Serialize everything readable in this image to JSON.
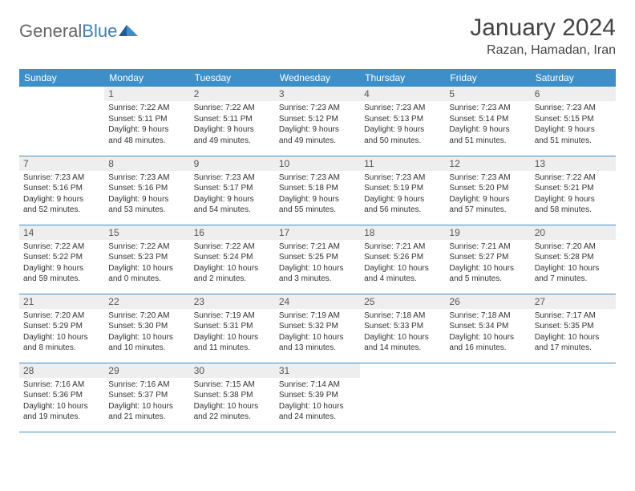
{
  "brand": {
    "general": "General",
    "blue": "Blue"
  },
  "title": "January 2024",
  "location": "Razan, Hamadan, Iran",
  "colors": {
    "header_bg": "#3d8fc9",
    "header_text": "#ffffff",
    "daynum_bg": "#eeeeee",
    "text": "#333333",
    "rule": "#3d8fc9"
  },
  "weekdays": [
    "Sunday",
    "Monday",
    "Tuesday",
    "Wednesday",
    "Thursday",
    "Friday",
    "Saturday"
  ],
  "weeks": [
    [
      null,
      {
        "n": "1",
        "sunrise": "Sunrise: 7:22 AM",
        "sunset": "Sunset: 5:11 PM",
        "d1": "Daylight: 9 hours",
        "d2": "and 48 minutes."
      },
      {
        "n": "2",
        "sunrise": "Sunrise: 7:22 AM",
        "sunset": "Sunset: 5:11 PM",
        "d1": "Daylight: 9 hours",
        "d2": "and 49 minutes."
      },
      {
        "n": "3",
        "sunrise": "Sunrise: 7:23 AM",
        "sunset": "Sunset: 5:12 PM",
        "d1": "Daylight: 9 hours",
        "d2": "and 49 minutes."
      },
      {
        "n": "4",
        "sunrise": "Sunrise: 7:23 AM",
        "sunset": "Sunset: 5:13 PM",
        "d1": "Daylight: 9 hours",
        "d2": "and 50 minutes."
      },
      {
        "n": "5",
        "sunrise": "Sunrise: 7:23 AM",
        "sunset": "Sunset: 5:14 PM",
        "d1": "Daylight: 9 hours",
        "d2": "and 51 minutes."
      },
      {
        "n": "6",
        "sunrise": "Sunrise: 7:23 AM",
        "sunset": "Sunset: 5:15 PM",
        "d1": "Daylight: 9 hours",
        "d2": "and 51 minutes."
      }
    ],
    [
      {
        "n": "7",
        "sunrise": "Sunrise: 7:23 AM",
        "sunset": "Sunset: 5:16 PM",
        "d1": "Daylight: 9 hours",
        "d2": "and 52 minutes."
      },
      {
        "n": "8",
        "sunrise": "Sunrise: 7:23 AM",
        "sunset": "Sunset: 5:16 PM",
        "d1": "Daylight: 9 hours",
        "d2": "and 53 minutes."
      },
      {
        "n": "9",
        "sunrise": "Sunrise: 7:23 AM",
        "sunset": "Sunset: 5:17 PM",
        "d1": "Daylight: 9 hours",
        "d2": "and 54 minutes."
      },
      {
        "n": "10",
        "sunrise": "Sunrise: 7:23 AM",
        "sunset": "Sunset: 5:18 PM",
        "d1": "Daylight: 9 hours",
        "d2": "and 55 minutes."
      },
      {
        "n": "11",
        "sunrise": "Sunrise: 7:23 AM",
        "sunset": "Sunset: 5:19 PM",
        "d1": "Daylight: 9 hours",
        "d2": "and 56 minutes."
      },
      {
        "n": "12",
        "sunrise": "Sunrise: 7:23 AM",
        "sunset": "Sunset: 5:20 PM",
        "d1": "Daylight: 9 hours",
        "d2": "and 57 minutes."
      },
      {
        "n": "13",
        "sunrise": "Sunrise: 7:22 AM",
        "sunset": "Sunset: 5:21 PM",
        "d1": "Daylight: 9 hours",
        "d2": "and 58 minutes."
      }
    ],
    [
      {
        "n": "14",
        "sunrise": "Sunrise: 7:22 AM",
        "sunset": "Sunset: 5:22 PM",
        "d1": "Daylight: 9 hours",
        "d2": "and 59 minutes."
      },
      {
        "n": "15",
        "sunrise": "Sunrise: 7:22 AM",
        "sunset": "Sunset: 5:23 PM",
        "d1": "Daylight: 10 hours",
        "d2": "and 0 minutes."
      },
      {
        "n": "16",
        "sunrise": "Sunrise: 7:22 AM",
        "sunset": "Sunset: 5:24 PM",
        "d1": "Daylight: 10 hours",
        "d2": "and 2 minutes."
      },
      {
        "n": "17",
        "sunrise": "Sunrise: 7:21 AM",
        "sunset": "Sunset: 5:25 PM",
        "d1": "Daylight: 10 hours",
        "d2": "and 3 minutes."
      },
      {
        "n": "18",
        "sunrise": "Sunrise: 7:21 AM",
        "sunset": "Sunset: 5:26 PM",
        "d1": "Daylight: 10 hours",
        "d2": "and 4 minutes."
      },
      {
        "n": "19",
        "sunrise": "Sunrise: 7:21 AM",
        "sunset": "Sunset: 5:27 PM",
        "d1": "Daylight: 10 hours",
        "d2": "and 5 minutes."
      },
      {
        "n": "20",
        "sunrise": "Sunrise: 7:20 AM",
        "sunset": "Sunset: 5:28 PM",
        "d1": "Daylight: 10 hours",
        "d2": "and 7 minutes."
      }
    ],
    [
      {
        "n": "21",
        "sunrise": "Sunrise: 7:20 AM",
        "sunset": "Sunset: 5:29 PM",
        "d1": "Daylight: 10 hours",
        "d2": "and 8 minutes."
      },
      {
        "n": "22",
        "sunrise": "Sunrise: 7:20 AM",
        "sunset": "Sunset: 5:30 PM",
        "d1": "Daylight: 10 hours",
        "d2": "and 10 minutes."
      },
      {
        "n": "23",
        "sunrise": "Sunrise: 7:19 AM",
        "sunset": "Sunset: 5:31 PM",
        "d1": "Daylight: 10 hours",
        "d2": "and 11 minutes."
      },
      {
        "n": "24",
        "sunrise": "Sunrise: 7:19 AM",
        "sunset": "Sunset: 5:32 PM",
        "d1": "Daylight: 10 hours",
        "d2": "and 13 minutes."
      },
      {
        "n": "25",
        "sunrise": "Sunrise: 7:18 AM",
        "sunset": "Sunset: 5:33 PM",
        "d1": "Daylight: 10 hours",
        "d2": "and 14 minutes."
      },
      {
        "n": "26",
        "sunrise": "Sunrise: 7:18 AM",
        "sunset": "Sunset: 5:34 PM",
        "d1": "Daylight: 10 hours",
        "d2": "and 16 minutes."
      },
      {
        "n": "27",
        "sunrise": "Sunrise: 7:17 AM",
        "sunset": "Sunset: 5:35 PM",
        "d1": "Daylight: 10 hours",
        "d2": "and 17 minutes."
      }
    ],
    [
      {
        "n": "28",
        "sunrise": "Sunrise: 7:16 AM",
        "sunset": "Sunset: 5:36 PM",
        "d1": "Daylight: 10 hours",
        "d2": "and 19 minutes."
      },
      {
        "n": "29",
        "sunrise": "Sunrise: 7:16 AM",
        "sunset": "Sunset: 5:37 PM",
        "d1": "Daylight: 10 hours",
        "d2": "and 21 minutes."
      },
      {
        "n": "30",
        "sunrise": "Sunrise: 7:15 AM",
        "sunset": "Sunset: 5:38 PM",
        "d1": "Daylight: 10 hours",
        "d2": "and 22 minutes."
      },
      {
        "n": "31",
        "sunrise": "Sunrise: 7:14 AM",
        "sunset": "Sunset: 5:39 PM",
        "d1": "Daylight: 10 hours",
        "d2": "and 24 minutes."
      },
      null,
      null,
      null
    ]
  ]
}
